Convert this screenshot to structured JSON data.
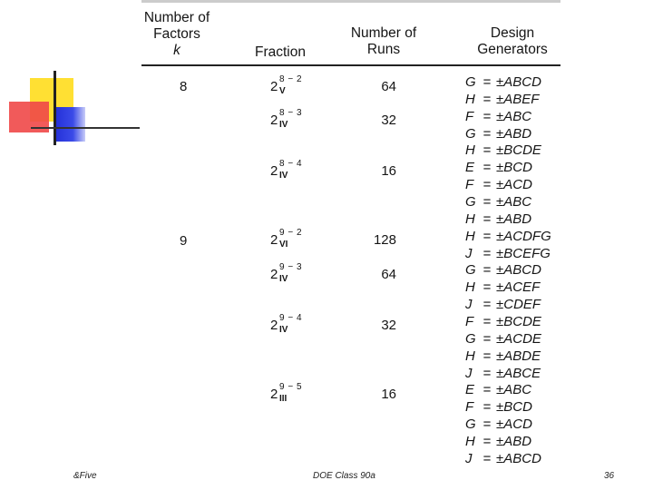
{
  "header": {
    "factors": [
      "Number of",
      "Factors",
      "k"
    ],
    "fraction": "Fraction",
    "runs": [
      "Number of",
      "Runs"
    ],
    "generators": [
      "Design",
      "Generators"
    ]
  },
  "rows": [
    {
      "k": "8",
      "base": "2",
      "exp": "8 − 2",
      "res": "V",
      "runs": "64"
    },
    {
      "k": "",
      "base": "2",
      "exp": "8 − 3",
      "res": "IV",
      "runs": "32"
    },
    {
      "k": "",
      "base": "2",
      "exp": "8 − 4",
      "res": "IV",
      "runs": "16"
    },
    {
      "k": "9",
      "base": "2",
      "exp": "9 − 2",
      "res": "VI",
      "runs": "128"
    },
    {
      "k": "",
      "base": "2",
      "exp": "9 − 3",
      "res": "IV",
      "runs": "64"
    },
    {
      "k": "",
      "base": "2",
      "exp": "9 − 4",
      "res": "IV",
      "runs": "32"
    },
    {
      "k": "",
      "base": "2",
      "exp": "9 − 5",
      "res": "III",
      "runs": "16"
    }
  ],
  "generators": [
    {
      "lhs": "G",
      "eq": "=",
      "rhs": "±ABCD"
    },
    {
      "lhs": "H",
      "eq": "=",
      "rhs": "±ABEF"
    },
    {
      "lhs": "F",
      "eq": "=",
      "rhs": "±ABC"
    },
    {
      "lhs": "G",
      "eq": "=",
      "rhs": "±ABD"
    },
    {
      "lhs": "H",
      "eq": "=",
      "rhs": "±BCDE"
    },
    {
      "lhs": "E",
      "eq": "=",
      "rhs": "±BCD"
    },
    {
      "lhs": "F",
      "eq": "=",
      "rhs": "±ACD"
    },
    {
      "lhs": "G",
      "eq": "=",
      "rhs": "±ABC"
    },
    {
      "lhs": "H",
      "eq": "=",
      "rhs": "±ABD"
    },
    {
      "lhs": "H",
      "eq": "=",
      "rhs": "±ACDFG"
    },
    {
      "lhs": "J",
      "eq": "=",
      "rhs": "±BCEFG"
    },
    {
      "lhs": "G",
      "eq": "=",
      "rhs": "±ABCD"
    },
    {
      "lhs": "H",
      "eq": "=",
      "rhs": "±ACEF"
    },
    {
      "lhs": "J",
      "eq": "=",
      "rhs": "±CDEF"
    },
    {
      "lhs": "F",
      "eq": "=",
      "rhs": "±BCDE"
    },
    {
      "lhs": "G",
      "eq": "=",
      "rhs": "±ACDE"
    },
    {
      "lhs": "H",
      "eq": "=",
      "rhs": "±ABDE"
    },
    {
      "lhs": "J",
      "eq": "=",
      "rhs": "±ABCE"
    },
    {
      "lhs": "E",
      "eq": "=",
      "rhs": "±ABC"
    },
    {
      "lhs": "F",
      "eq": "=",
      "rhs": "±BCD"
    },
    {
      "lhs": "G",
      "eq": "=",
      "rhs": "±ACD"
    },
    {
      "lhs": "H",
      "eq": "=",
      "rhs": "±ABD"
    },
    {
      "lhs": "J",
      "eq": "=",
      "rhs": "±ABCD"
    }
  ],
  "footer": {
    "left": "&Five",
    "center": "DOE Class 90a",
    "page": "36"
  }
}
